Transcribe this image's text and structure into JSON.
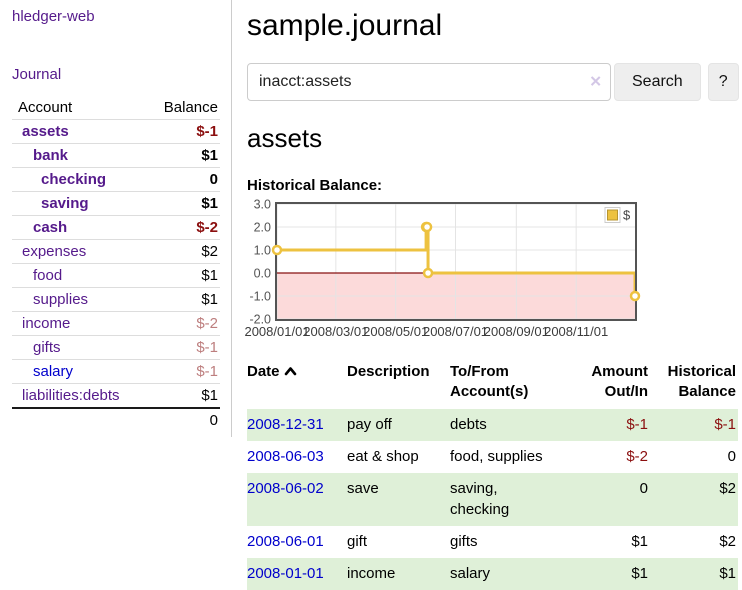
{
  "colors": {
    "link_visited": "#551a8b",
    "link_new": "#0000cc",
    "negative": "#8b0f0f",
    "negative_dimmed": "#bd7e7e",
    "row_stripe_green": "#dff0d8",
    "series_gold": "#edc240",
    "chart_negative_fill": "#fcdada",
    "chart_zero_line": "#871010",
    "chart_border": "#545454",
    "chart_grid": "#e4e4e4"
  },
  "sidebar": {
    "app_title": "hledger-web",
    "journal_label": "Journal",
    "accounts_table": {
      "headers": {
        "account": "Account",
        "balance": "Balance"
      },
      "rows": [
        {
          "name": "assets",
          "balance": "$-1",
          "depth": 1,
          "bold": true,
          "negative": true
        },
        {
          "name": "bank",
          "balance": "$1",
          "depth": 2,
          "bold": true
        },
        {
          "name": "checking",
          "balance": "0",
          "depth": 3,
          "bold": true
        },
        {
          "name": "saving",
          "balance": "$1",
          "depth": 3,
          "bold": true
        },
        {
          "name": "cash",
          "balance": "$-2",
          "depth": 2,
          "bold": true,
          "negative": true
        },
        {
          "name": "expenses",
          "balance": "$2",
          "depth": 1
        },
        {
          "name": "food",
          "balance": "$1",
          "depth": 2
        },
        {
          "name": "supplies",
          "balance": "$1",
          "depth": 2
        },
        {
          "name": "income",
          "balance": "$-2",
          "depth": 1,
          "dimmed": true
        },
        {
          "name": "gifts",
          "balance": "$-1",
          "depth": 2,
          "dimmed": true
        },
        {
          "name": "salary",
          "balance": "$-1",
          "depth": 2,
          "dimmed": true,
          "unvisited": true
        },
        {
          "name": "liabilities:debts",
          "balance": "$1",
          "depth": 1
        }
      ],
      "total": "0"
    }
  },
  "main": {
    "title": "sample.journal",
    "search": {
      "value": "inacct:assets",
      "clear_icon": "✕",
      "search_label": "Search",
      "help_label": "?"
    },
    "account_heading": "assets",
    "chart_label": "Historical Balance:",
    "register_table": {
      "columns": [
        {
          "label_lines": [
            "Date"
          ],
          "sorted_ascending": true
        },
        {
          "label_lines": [
            "Description"
          ]
        },
        {
          "label_lines": [
            "To/From",
            "Account(s)"
          ]
        },
        {
          "label_lines": [
            "Amount",
            "Out/In"
          ],
          "numeric": true
        },
        {
          "label_lines": [
            "Historical",
            "Balance"
          ],
          "numeric": true
        }
      ],
      "rows": [
        {
          "date": "2008-12-31",
          "description": "pay off",
          "accounts_lines": [
            "debts"
          ],
          "amount": "$-1",
          "amount_negative": true,
          "balance": "$-1",
          "balance_negative": true
        },
        {
          "date": "2008-06-03",
          "description": "eat & shop",
          "accounts_lines": [
            "food, supplies"
          ],
          "amount": "$-2",
          "amount_negative": true,
          "balance": "0"
        },
        {
          "date": "2008-06-02",
          "description": "save",
          "accounts_lines": [
            "saving,",
            "checking"
          ],
          "amount": "0",
          "balance": "$2"
        },
        {
          "date": "2008-06-01",
          "description": "gift",
          "accounts_lines": [
            "gifts"
          ],
          "amount": "$1",
          "balance": "$2"
        },
        {
          "date": "2008-01-01",
          "description": "income",
          "accounts_lines": [
            "salary"
          ],
          "amount": "$1",
          "balance": "$1"
        }
      ]
    }
  },
  "chart_data": {
    "type": "line",
    "step": true,
    "title": "Historical Balance",
    "series": [
      {
        "name": "$",
        "color": "#edc240",
        "points": [
          {
            "date": "2008-01-01",
            "value": 1
          },
          {
            "date": "2008-06-01",
            "value": 2
          },
          {
            "date": "2008-06-02",
            "value": 2
          },
          {
            "date": "2008-06-03",
            "value": 0
          },
          {
            "date": "2008-12-31",
            "value": -1
          }
        ]
      }
    ],
    "x_range": [
      "2008-01-01",
      "2008-12-31"
    ],
    "x_tick_labels": [
      "2008/01/01",
      "2008/03/01",
      "2008/05/01",
      "2008/07/01",
      "2008/09/01",
      "2008/11/01"
    ],
    "y_ticks": [
      3.0,
      2.0,
      1.0,
      0.0,
      -1.0,
      -2.0
    ],
    "y_tick_labels": [
      "3.0",
      "2.0",
      "1.0",
      "0.0",
      "-1.0",
      "-2.0"
    ],
    "ylim": [
      -2,
      3
    ],
    "grid": true,
    "legend_position": "top-right",
    "negative_region_shaded": true
  }
}
